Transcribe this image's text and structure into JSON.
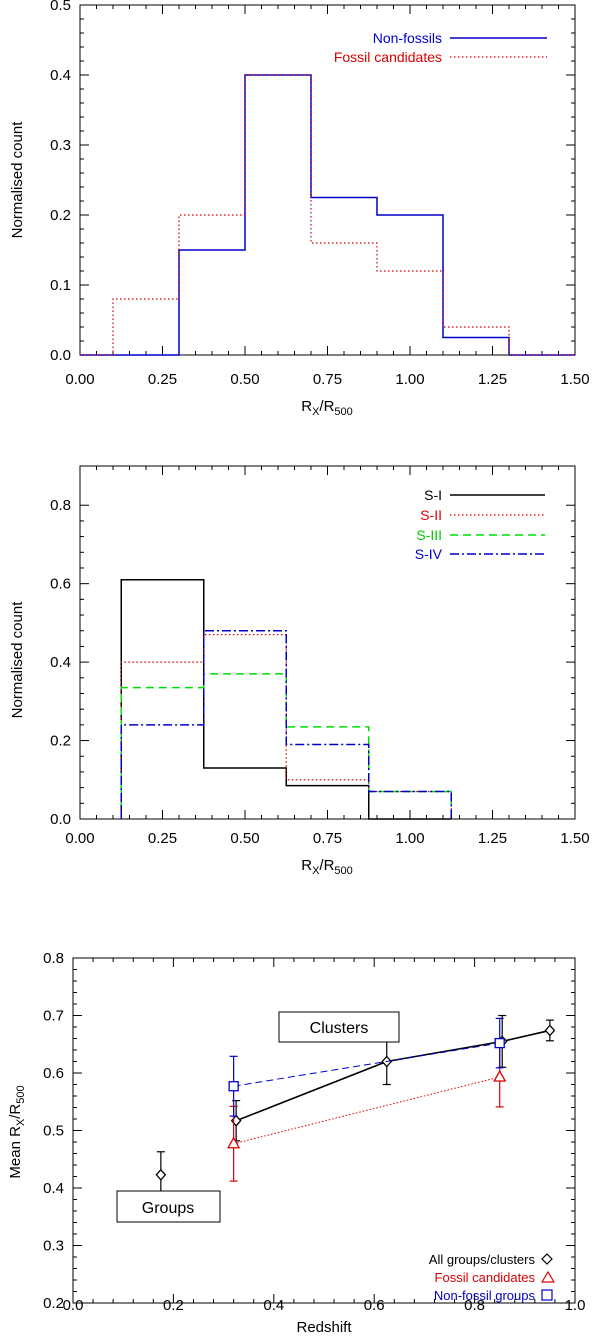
{
  "chart_data": [
    {
      "type": "histogram",
      "id": "panel1",
      "xlabel": "R_X/R_500",
      "xlabel_main": "R",
      "xlabel_sub1": "X",
      "xlabel_slash": "/R",
      "xlabel_sub2": "500",
      "ylabel": "Normalised count",
      "xlim": [
        0,
        1.5
      ],
      "ylim": [
        0,
        0.5
      ],
      "xticks": [
        0,
        0.25,
        0.5,
        0.75,
        1.0,
        1.25,
        1.5
      ],
      "xtick_labels": [
        "0.00",
        "0.25",
        "0.50",
        "0.75",
        "1.00",
        "1.25",
        "1.50"
      ],
      "yticks": [
        0.0,
        0.1,
        0.2,
        0.3,
        0.4,
        0.5
      ],
      "ytick_labels": [
        "0.0",
        "0.1",
        "0.2",
        "0.3",
        "0.4",
        "0.5"
      ],
      "legend_position": "top-right",
      "series": [
        {
          "name": "Non-fossils",
          "color": "#0000cc",
          "dash": "solid",
          "edges": [
            0.0,
            0.1,
            0.3,
            0.5,
            0.7,
            0.9,
            1.1,
            1.3,
            1.5
          ],
          "values": [
            0.0,
            0.0,
            0.15,
            0.4,
            0.225,
            0.2,
            0.025,
            0.0
          ]
        },
        {
          "name": "Fossil candidates",
          "color": "#dd0000",
          "dash": "dotted",
          "edges": [
            0.0,
            0.1,
            0.3,
            0.5,
            0.7,
            0.9,
            1.1,
            1.3,
            1.5
          ],
          "values": [
            0.0,
            0.08,
            0.2,
            0.4,
            0.16,
            0.12,
            0.04,
            0.0
          ]
        }
      ]
    },
    {
      "type": "histogram",
      "id": "panel2",
      "xlabel": "R_X/R_500",
      "xlabel_main": "R",
      "xlabel_sub1": "X",
      "xlabel_slash": "/R",
      "xlabel_sub2": "500",
      "ylabel": "Normalised count",
      "xlim": [
        0,
        1.5
      ],
      "ylim": [
        0,
        0.9
      ],
      "xticks": [
        0,
        0.25,
        0.5,
        0.75,
        1.0,
        1.25,
        1.5
      ],
      "xtick_labels": [
        "0.00",
        "0.25",
        "0.50",
        "0.75",
        "1.00",
        "1.25",
        "1.50"
      ],
      "yticks": [
        0.0,
        0.2,
        0.4,
        0.6,
        0.8
      ],
      "ytick_labels": [
        "0.0",
        "0.2",
        "0.4",
        "0.6",
        "0.8"
      ],
      "legend_position": "top-right",
      "series": [
        {
          "name": "S-I",
          "color": "#000000",
          "dash": "solid",
          "edges": [
            0.125,
            0.375,
            0.625,
            0.875,
            1.125
          ],
          "values": [
            0.61,
            0.13,
            0.085,
            0.0
          ]
        },
        {
          "name": "S-II",
          "color": "#dd0000",
          "dash": "dotted",
          "edges": [
            0.125,
            0.375,
            0.625,
            0.875,
            1.125
          ],
          "values": [
            0.4,
            0.47,
            0.1,
            0.07
          ]
        },
        {
          "name": "S-III",
          "color": "#00dd00",
          "dash": "dashed",
          "edges": [
            0.125,
            0.375,
            0.625,
            0.875,
            1.125
          ],
          "values": [
            0.335,
            0.37,
            0.235,
            0.07
          ]
        },
        {
          "name": "S-IV",
          "color": "#0000cc",
          "dash": "dashdot",
          "edges": [
            0.125,
            0.375,
            0.625,
            0.875,
            1.125
          ],
          "values": [
            0.24,
            0.48,
            0.19,
            0.07
          ]
        }
      ]
    },
    {
      "type": "scatter",
      "id": "panel3",
      "xlabel": "Redshift",
      "ylabel": "Mean R_X/R_500",
      "ylabel_main": "Mean R",
      "ylabel_sub1": "X",
      "ylabel_slash": "/R",
      "ylabel_sub2": "500",
      "xlim": [
        0,
        1.0
      ],
      "ylim": [
        0.2,
        0.8
      ],
      "xticks": [
        0,
        0.2,
        0.4,
        0.6,
        0.8,
        1.0
      ],
      "xtick_labels": [
        "0.0",
        "0.2",
        "0.4",
        "0.6",
        "0.8",
        "1.0"
      ],
      "yticks": [
        0.2,
        0.3,
        0.4,
        0.5,
        0.6,
        0.7,
        0.8
      ],
      "ytick_labels": [
        "0.2",
        "0.3",
        "0.4",
        "0.5",
        "0.6",
        "0.7",
        "0.8"
      ],
      "legend_position": "bottom-right",
      "annotations": [
        "Clusters",
        "Groups"
      ],
      "series": [
        {
          "name": "All groups/clusters",
          "marker": "diamond",
          "color": "#000000",
          "dash": "solid",
          "connect_from_index": 1,
          "x": [
            0.175,
            0.325,
            0.625,
            0.855,
            0.95
          ],
          "y": [
            0.423,
            0.517,
            0.62,
            0.655,
            0.674
          ],
          "err": [
            0.04,
            0.035,
            0.04,
            0.045,
            0.018
          ]
        },
        {
          "name": "Fossil candidates",
          "marker": "triangle",
          "color": "#dd0000",
          "dash": "dotted",
          "connect_from_index": 0,
          "x": [
            0.32,
            0.85
          ],
          "y": [
            0.477,
            0.593
          ],
          "err": [
            0.065,
            0.052
          ]
        },
        {
          "name": "Non-fossil groups",
          "marker": "square",
          "color": "#0000cc",
          "dash": "dashed",
          "connect_from_index": 0,
          "x": [
            0.32,
            0.85
          ],
          "y": [
            0.577,
            0.652
          ],
          "err": [
            0.052,
            0.043
          ]
        }
      ]
    }
  ]
}
